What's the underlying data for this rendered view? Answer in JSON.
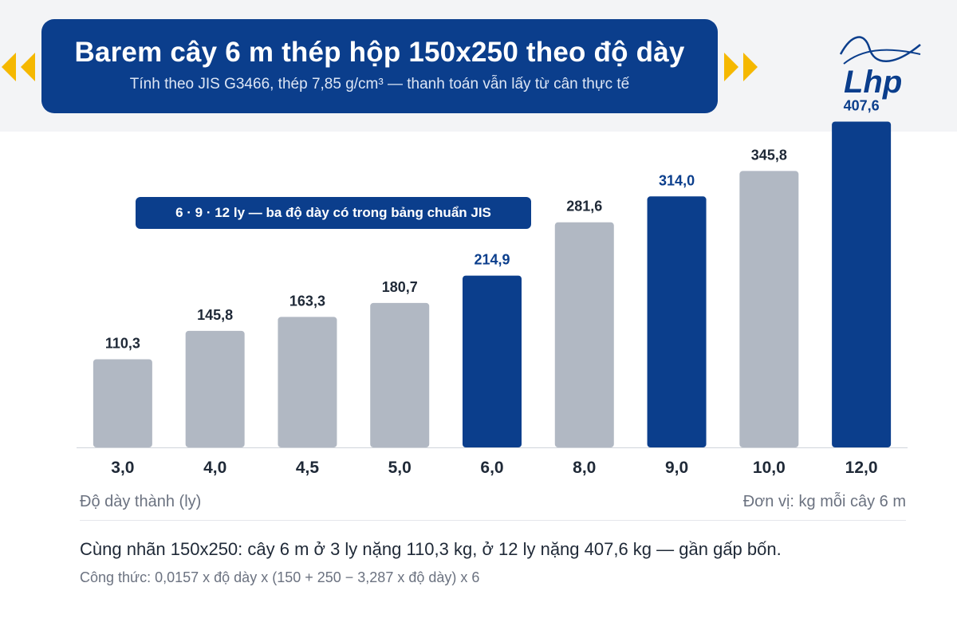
{
  "header": {
    "title": "Barem cây 6 m thép hộp 150x250 theo độ dày",
    "subtitle": "Tính theo JIS G3466, thép 7,85 g/cm³ — thanh toán vẫn lấy từ cân thực tế"
  },
  "logo": {
    "text": "Lhp"
  },
  "callout": "6 · 9 · 12 ly — ba độ dày có trong bảng chuẩn JIS",
  "chart_data": {
    "type": "bar",
    "categories": [
      "3,0",
      "4,0",
      "4,5",
      "5,0",
      "6,0",
      "8,0",
      "9,0",
      "10,0",
      "12,0"
    ],
    "values": [
      110.3,
      145.8,
      163.3,
      180.7,
      214.9,
      281.6,
      314.0,
      345.8,
      407.6
    ],
    "value_labels": [
      "110,3",
      "145,8",
      "163,3",
      "180,7",
      "214,9",
      "281,6",
      "314,0",
      "345,8",
      "407,6"
    ],
    "highlighted": [
      false,
      false,
      false,
      false,
      true,
      false,
      true,
      false,
      true
    ],
    "xlabel": "Độ dày thành (ly)",
    "unit_label": "Đơn vị: kg mỗi cây 6 m",
    "ylim": [
      0,
      430
    ],
    "grid": false,
    "legend": "none",
    "colors": {
      "highlight": "#0b3e8c",
      "default": "#b1b8c3",
      "label_highlight": "#0b3e8c",
      "label_default": "#1f2937",
      "baseline": "#d1d5db"
    }
  },
  "footer": {
    "note": "Cùng nhãn 150x250: cây 6 m ở 3 ly nặng 110,3 kg, ở 12 ly nặng 407,6 kg — gần gấp bốn.",
    "formula": "Công thức: 0,0157 x độ dày x (150 + 250 − 3,287 x độ dày) x 6"
  }
}
